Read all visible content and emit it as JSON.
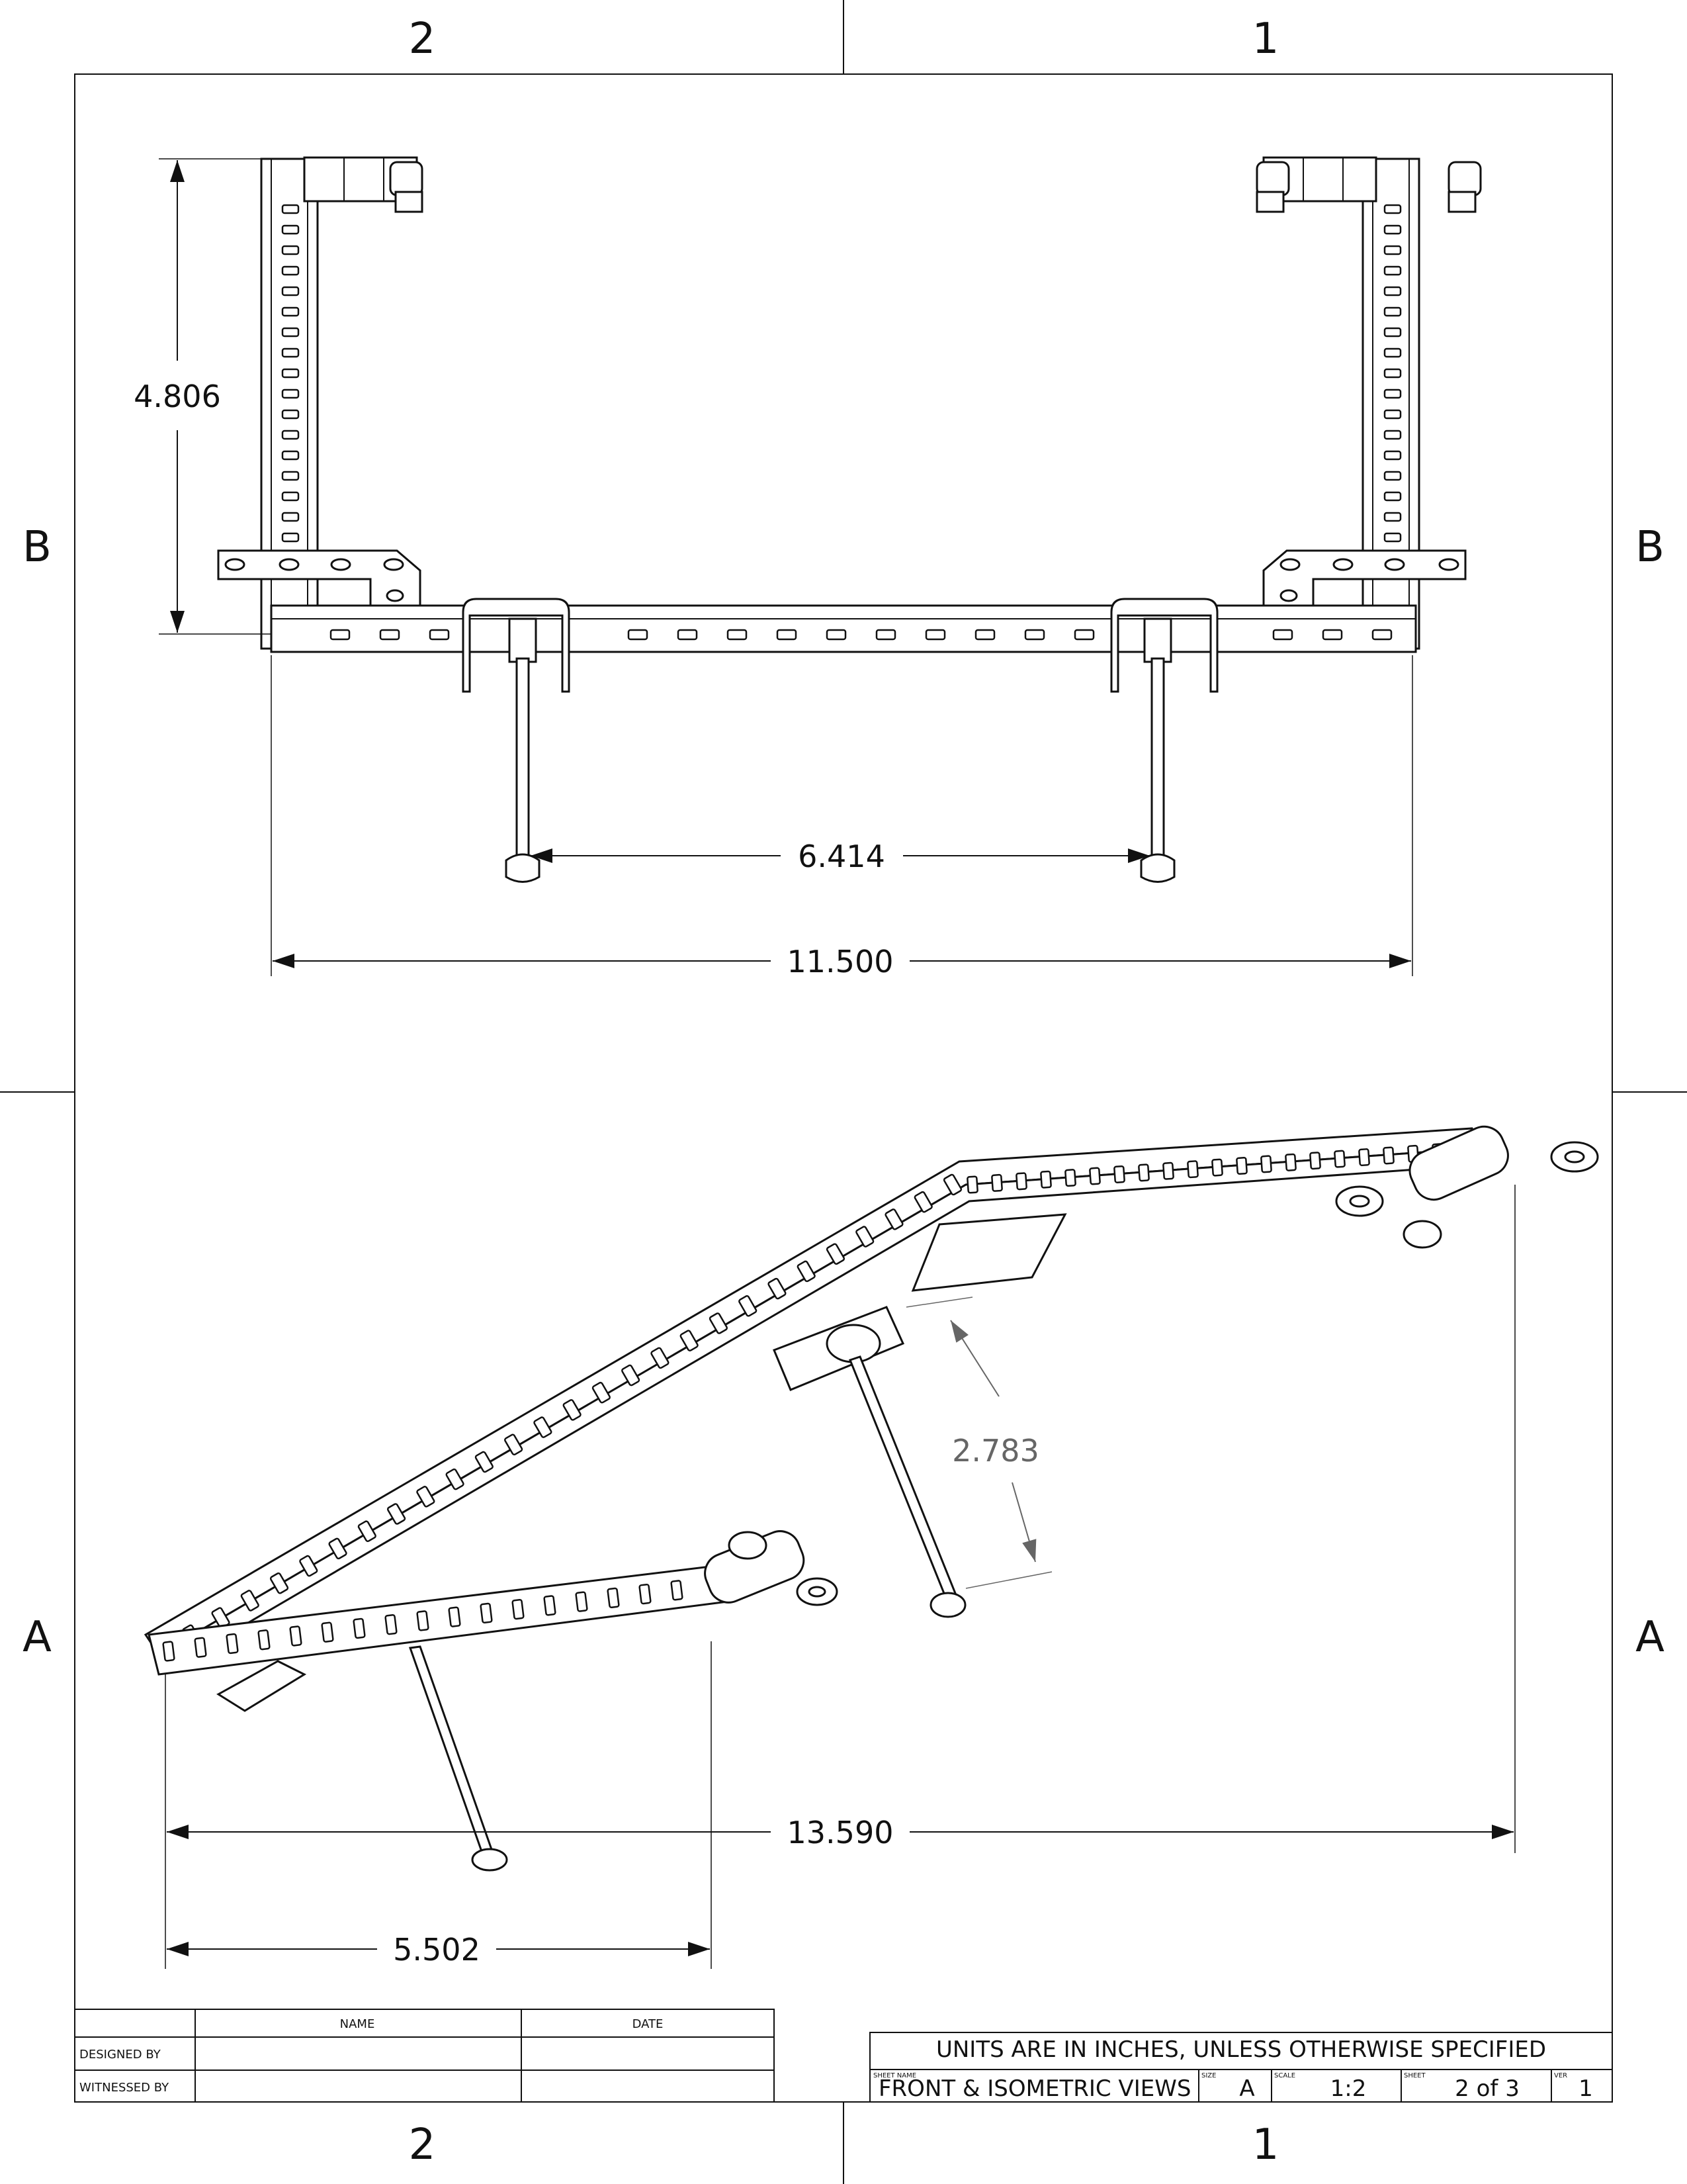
{
  "zones": {
    "col_left": "2",
    "col_right": "1",
    "row_upper": "B",
    "row_lower": "A"
  },
  "dimensions": {
    "front_height": "4.806",
    "front_axle_spacing": "6.414",
    "front_width": "11.500",
    "iso_axle_drop": "2.783",
    "iso_overall_length": "13.590",
    "iso_short_length": "5.502"
  },
  "signoff_block": {
    "headers": {
      "name": "NAME",
      "date": "DATE"
    },
    "rows": [
      {
        "label": "DESIGNED BY",
        "name": "",
        "date": ""
      },
      {
        "label": "WITNESSED BY",
        "name": "",
        "date": ""
      }
    ]
  },
  "title_block": {
    "units_note": "UNITS ARE IN INCHES, UNLESS OTHERWISE SPECIFIED",
    "sheet_name_label": "SHEET NAME",
    "sheet_name": "FRONT & ISOMETRIC VIEWS",
    "size_label": "SIZE",
    "size": "A",
    "scale_label": "SCALE",
    "scale": "1:2",
    "sheet_label": "SHEET",
    "sheet": "2 of 3",
    "ver_label": "VER",
    "ver": "1"
  }
}
